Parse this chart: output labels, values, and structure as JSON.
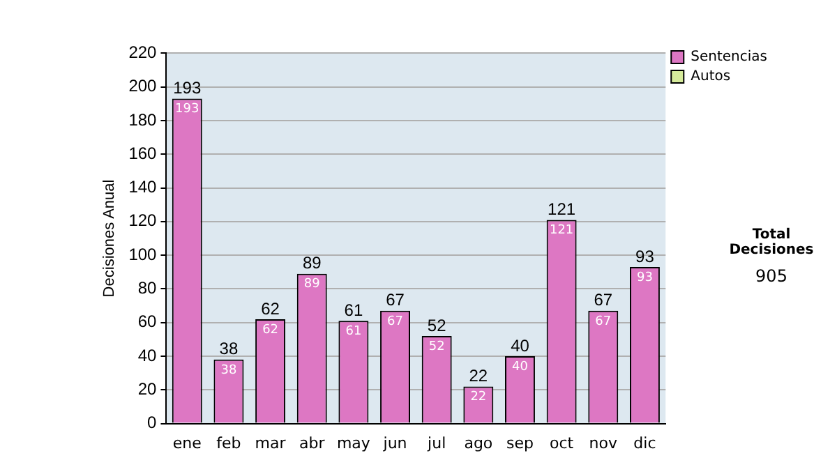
{
  "chart_data": {
    "type": "bar",
    "ylabel": "Decisiones Anual",
    "categories": [
      "ene",
      "feb",
      "mar",
      "abr",
      "may",
      "jun",
      "jul",
      "ago",
      "sep",
      "oct",
      "nov",
      "dic"
    ],
    "series": [
      {
        "name": "Sentencias",
        "color": "#dd77c3",
        "values": [
          193,
          38,
          62,
          89,
          61,
          67,
          52,
          22,
          40,
          121,
          67,
          93
        ],
        "value_labels": [
          "193",
          "38",
          "62",
          "89",
          "61",
          "67",
          "52",
          "22",
          "40",
          "121",
          "67",
          "93"
        ]
      },
      {
        "name": "Autos",
        "color": "#d6eb9b",
        "values": [
          0,
          0,
          0,
          0,
          0,
          0,
          0,
          0,
          0,
          0,
          0,
          0
        ],
        "value_labels": [
          null,
          null,
          null,
          null,
          null,
          null,
          null,
          null,
          null,
          null,
          null,
          null
        ]
      }
    ],
    "stacked": true,
    "totals": [
      "193",
      "38",
      "62",
      "89",
      "61",
      "67",
      "52",
      "22",
      "40",
      "121",
      "67",
      "93"
    ],
    "ylim": [
      0,
      220
    ],
    "yticks": [
      0,
      20,
      40,
      60,
      80,
      100,
      120,
      140,
      160,
      180,
      200,
      220
    ],
    "grid": "y",
    "legend": "right",
    "annotations": [
      "Total Decisiones",
      "905"
    ]
  }
}
